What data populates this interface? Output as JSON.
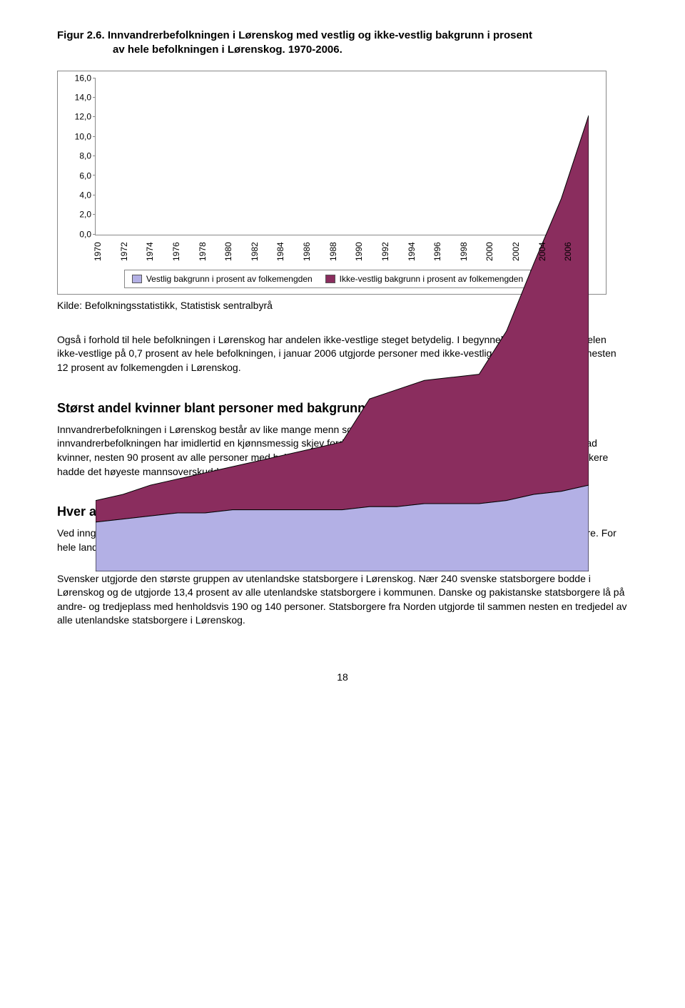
{
  "figure": {
    "title_line1": "Figur 2.6. Innvandrerbefolkningen i Lørenskog med vestlig og ikke-vestlig bakgrunn i prosent",
    "title_line2": "av hele befolkningen i Lørenskog. 1970-2006.",
    "chart": {
      "type": "area",
      "ylim": [
        0,
        16
      ],
      "ytick_step": 2,
      "yticks": [
        "0,0",
        "2,0",
        "4,0",
        "6,0",
        "8,0",
        "10,0",
        "12,0",
        "14,0",
        "16,0"
      ],
      "xlabels": [
        "1970",
        "1972",
        "1974",
        "1976",
        "1978",
        "1980",
        "1982",
        "1984",
        "1986",
        "1988",
        "1990",
        "1992",
        "1994",
        "1996",
        "1998",
        "2000",
        "2002",
        "2004",
        "2006"
      ],
      "series": [
        {
          "name": "Vestlig bakgrunn i prosent av folkemengden",
          "color": "#b3b0e5",
          "values": [
            1.6,
            1.7,
            1.8,
            1.9,
            1.9,
            2.0,
            2.0,
            2.0,
            2.0,
            2.0,
            2.1,
            2.1,
            2.2,
            2.2,
            2.2,
            2.3,
            2.5,
            2.6,
            2.8
          ]
        },
        {
          "name": "Ikke-vestlig bakgrunn i prosent av folkemengden",
          "color": "#8a2d5e",
          "values": [
            0.7,
            0.8,
            1.0,
            1.1,
            1.3,
            1.4,
            1.6,
            1.8,
            2.0,
            2.2,
            3.5,
            3.8,
            4.0,
            4.1,
            4.2,
            5.5,
            7.5,
            9.5,
            12.0
          ]
        }
      ],
      "background_color": "#ffffff",
      "border_color": "#888888",
      "tick_fontsize": 12
    },
    "legend": [
      {
        "swatch": "#b3b0e5",
        "label": "Vestlig bakgrunn i prosent av folkemengden"
      },
      {
        "swatch": "#8a2d5e",
        "label": "Ikke-vestlig bakgrunn i prosent av folkemengden"
      }
    ],
    "source": "Kilde: Befolkningsstatistikk, Statistisk sentralbyrå"
  },
  "para1": "Også i forhold til hele befolkningen i Lørenskog har andelen ikke-vestlige steget betydelig. I begynnelsen av 1970 lå andelen ikke-vestlige på 0,7 prosent av hele befolkningen, i januar 2006 utgjorde personer med ikke-vestlig innvandrerbakgrunn nesten 12 prosent av folkemengden i Lørenskog.",
  "section1": {
    "heading": "Størst andel kvinner blant personer med bakgrunn fra Thailand",
    "body": "Innvandrerbefolkningen i Lørenskog består av like mange menn som kvinner (rundt 2 200 hver). Noen grupper i innvandrerbefolkningen har imidlertid en kjønnsmessig skjev fordeling. Personer med bakgrunn fra Thailand var i stor grad kvinner, nesten 90 prosent av alle personer med bakgrunn fra Thailand bakgrunn i Lørenskog var kvinner. Tyskere og irakere hadde det høyeste mannsoverskuddet med 60 prosent hver."
  },
  "section2": {
    "heading": "Hver attende innbygger er utenlandsk statsborger",
    "p1": "Ved inngangen av 2006 var 5,7 prosent, eller nesten 1 800 personer av alle bosatte i Lørenskog utenlandske statsborgere. For hele landet var andelen 4,8 prosent.",
    "p2": "Svensker utgjorde den største gruppen av utenlandske statsborgere i Lørenskog. Nær 240 svenske statsborgere bodde i Lørenskog og de utgjorde 13,4 prosent av alle utenlandske statsborgere i kommunen. Danske og pakistanske statsborgere lå på andre- og tredjeplass med henholdsvis 190 og 140 personer. Statsborgere fra Norden utgjorde til sammen nesten en tredjedel av alle utenlandske statsborgere i Lørenskog."
  },
  "page_number": "18"
}
